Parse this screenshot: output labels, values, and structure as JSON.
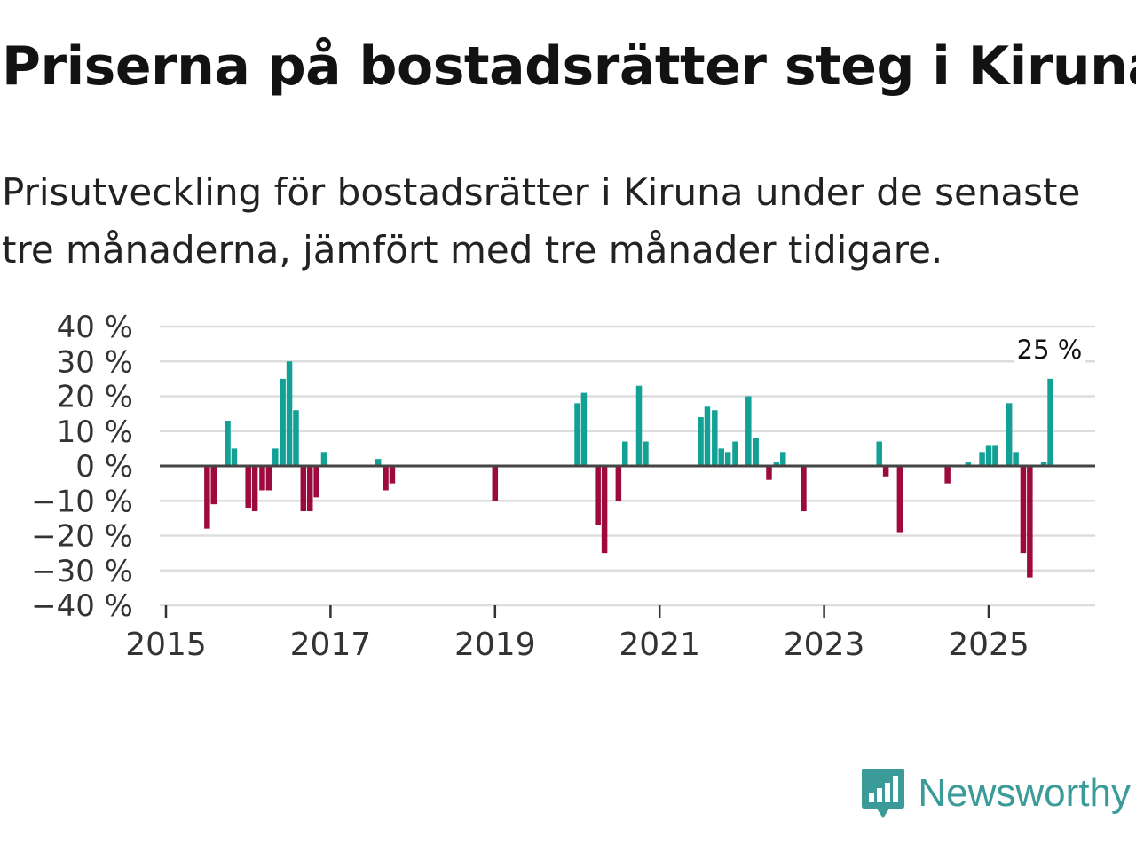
{
  "header": {
    "title": "Priserna på bostadsrätter steg i Kiruna",
    "subtitle": "Prisutveckling för bostadsrätter i Kiruna under de senaste tre månaderna, jämfört med tre månader tidigare."
  },
  "branding": {
    "name": "Newsworthy",
    "icon": "newsworthy-chart-icon",
    "color": "#3a9b98"
  },
  "chart_data": {
    "type": "bar",
    "title": "Priserna på bostadsrätter steg i Kiruna",
    "xlabel": "",
    "ylabel": "",
    "ylim": [
      -40,
      40
    ],
    "xlim": [
      2015,
      2026.3
    ],
    "y_ticks": [
      "40 %",
      "30 %",
      "20 %",
      "10 %",
      "0 %",
      "−10 %",
      "−20 %",
      "−30 %",
      "−40 %"
    ],
    "y_tick_values": [
      40,
      30,
      20,
      10,
      0,
      -10,
      -20,
      -30,
      -40
    ],
    "x_ticks": [
      "2015",
      "2017",
      "2019",
      "2021",
      "2023",
      "2025"
    ],
    "x_tick_values": [
      2015,
      2017,
      2019,
      2021,
      2023,
      2025
    ],
    "grid": true,
    "colors": {
      "positive": "#13a196",
      "negative": "#9c0a3e"
    },
    "annotation": {
      "text": "25 %",
      "x": 2025.75
    },
    "series": [
      {
        "name": "Prisutveckling",
        "x": [
          2015.5,
          2015.58,
          2015.75,
          2015.83,
          2016.0,
          2016.08,
          2016.17,
          2016.25,
          2016.33,
          2016.42,
          2016.5,
          2016.58,
          2016.67,
          2016.75,
          2016.83,
          2016.92,
          2017.58,
          2017.67,
          2017.75,
          2019.0,
          2020.0,
          2020.08,
          2020.25,
          2020.33,
          2020.5,
          2020.58,
          2020.75,
          2020.83,
          2021.5,
          2021.58,
          2021.67,
          2021.75,
          2021.83,
          2021.92,
          2022.08,
          2022.17,
          2022.33,
          2022.42,
          2022.5,
          2022.75,
          2023.67,
          2023.75,
          2023.92,
          2024.5,
          2024.75,
          2024.92,
          2025.0,
          2025.08,
          2025.25,
          2025.33,
          2025.42,
          2025.5,
          2025.67,
          2025.75
        ],
        "values": [
          -18,
          -11,
          13,
          5,
          -12,
          -13,
          -7,
          -7,
          5,
          25,
          30,
          16,
          -13,
          -13,
          -9,
          4,
          2,
          -7,
          -5,
          -10,
          18,
          21,
          -17,
          -25,
          -10,
          7,
          23,
          7,
          14,
          17,
          16,
          5,
          4,
          7,
          20,
          8,
          -4,
          1,
          4,
          -13,
          7,
          -3,
          -19,
          -5,
          1,
          4,
          6,
          6,
          18,
          4,
          -25,
          -32,
          1,
          25
        ]
      }
    ]
  }
}
